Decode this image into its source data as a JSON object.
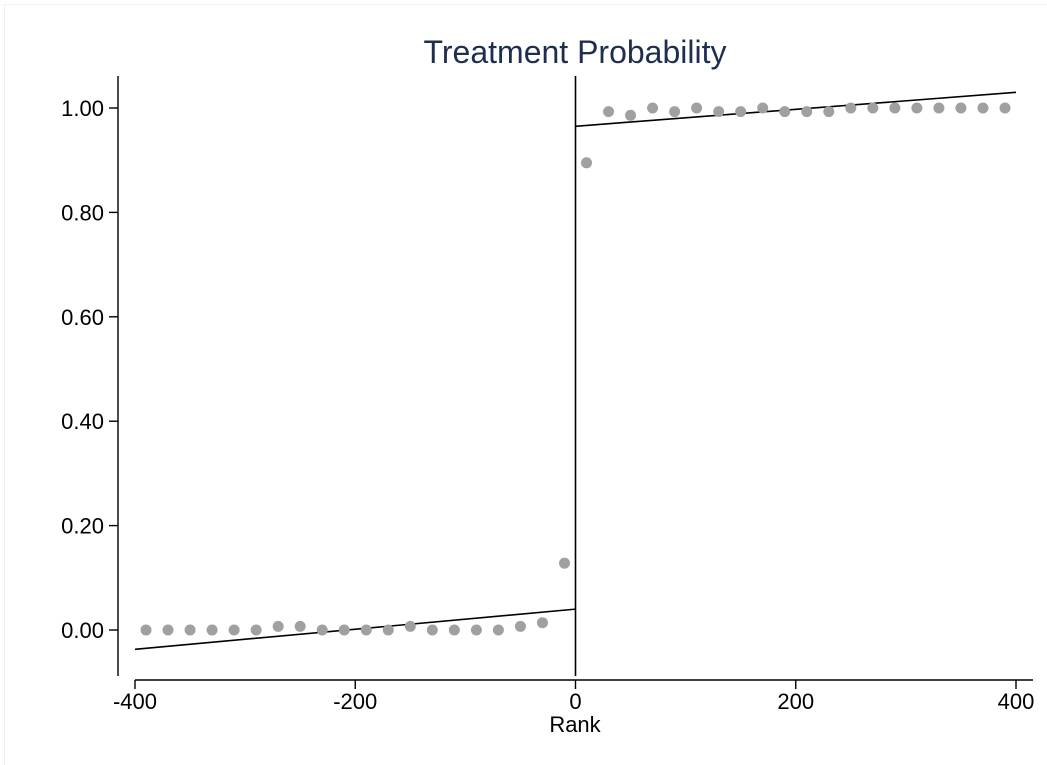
{
  "chart_data": {
    "type": "scatter",
    "title": "Treatment Probability",
    "xlabel": "Rank",
    "ylabel": "",
    "xlim": [
      -400,
      400
    ],
    "ylim": [
      -0.06,
      1.06
    ],
    "xticks": [
      -400,
      -200,
      0,
      200,
      400
    ],
    "xtick_labels": [
      "-400",
      "-200",
      "0",
      "200",
      "400"
    ],
    "yticks": [
      0,
      0.2,
      0.4,
      0.6,
      0.8,
      1.0
    ],
    "ytick_labels": [
      "0.00",
      "0.20",
      "0.40",
      "0.60",
      "0.80",
      "1.00"
    ],
    "grid": false,
    "cutoff": 0,
    "points": {
      "x": [
        -390,
        -370,
        -350,
        -330,
        -310,
        -290,
        -270,
        -250,
        -230,
        -210,
        -190,
        -170,
        -150,
        -130,
        -110,
        -90,
        -70,
        -50,
        -30,
        -10,
        10,
        30,
        50,
        70,
        90,
        110,
        130,
        150,
        170,
        190,
        210,
        230,
        250,
        270,
        290,
        310,
        330,
        350,
        370,
        390
      ],
      "y": [
        0,
        0,
        0,
        0,
        0,
        0,
        0.007,
        0.007,
        0,
        0,
        0,
        0,
        0.007,
        0,
        0,
        0,
        0,
        0.007,
        0.014,
        0.128,
        0.895,
        0.993,
        0.986,
        1.0,
        0.993,
        1.0,
        0.993,
        0.993,
        1.0,
        0.993,
        0.993,
        0.993,
        1.0,
        1.0,
        1.0,
        1.0,
        1.0,
        1.0,
        1.0,
        1.0
      ]
    },
    "fit_lines": [
      {
        "x": [
          -400,
          0
        ],
        "y": [
          -0.037,
          0.04
        ]
      },
      {
        "x": [
          0,
          400
        ],
        "y": [
          0.965,
          1.03
        ]
      }
    ],
    "colors": {
      "points": "#a0a0a0",
      "lines": "#000000",
      "title": "#1f2d4e"
    }
  }
}
